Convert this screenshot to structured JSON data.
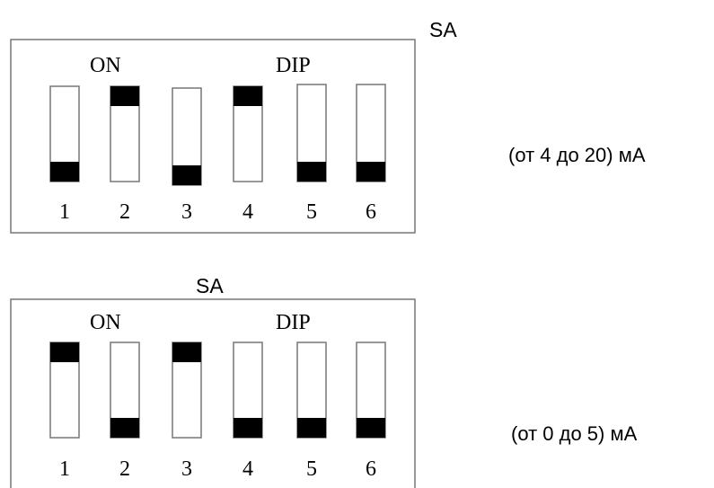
{
  "configs": [
    {
      "label": "SA",
      "on_label": "ON",
      "dip_label": "DIP",
      "range_text": "(от 4 до 20) мА",
      "switches": [
        {
          "number": "1",
          "state": "off"
        },
        {
          "number": "2",
          "state": "on"
        },
        {
          "number": "3",
          "state": "off"
        },
        {
          "number": "4",
          "state": "on"
        },
        {
          "number": "5",
          "state": "off"
        },
        {
          "number": "6",
          "state": "off"
        }
      ]
    },
    {
      "label": "SA",
      "on_label": "ON",
      "dip_label": "DIP",
      "range_text": "(от 0 до 5) мА",
      "switches": [
        {
          "number": "1",
          "state": "on"
        },
        {
          "number": "2",
          "state": "off"
        },
        {
          "number": "3",
          "state": "on"
        },
        {
          "number": "4",
          "state": "off"
        },
        {
          "number": "5",
          "state": "off"
        },
        {
          "number": "6",
          "state": "off"
        }
      ]
    }
  ],
  "colors": {
    "outline": "#777777",
    "knob": "#000000",
    "text": "#000000"
  }
}
